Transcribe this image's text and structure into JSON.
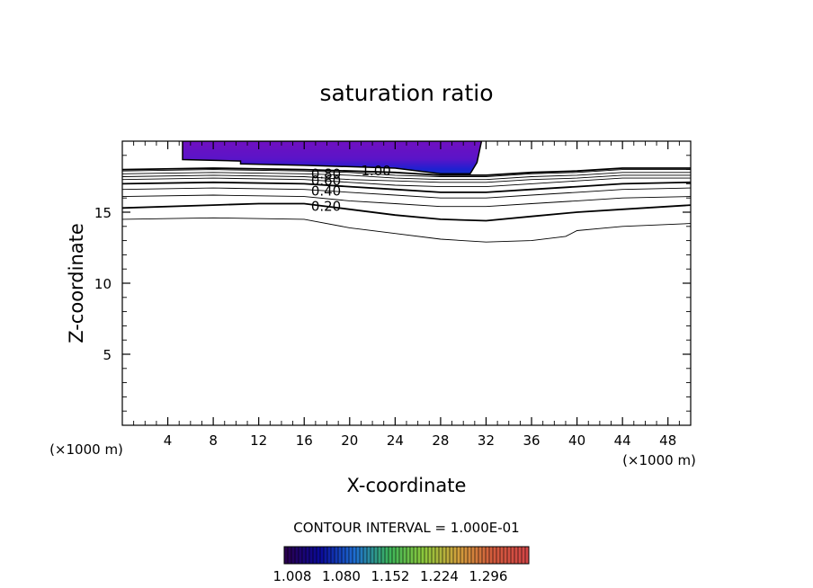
{
  "chart_data": {
    "type": "contour",
    "title": "saturation ratio",
    "xlabel": "X-coordinate",
    "ylabel": "Z-coordinate",
    "x_unit": "(×1000 m)",
    "z_unit": "(×1000 m)",
    "xlim": [
      0,
      50
    ],
    "ylim": [
      0,
      20
    ],
    "x_ticks": [
      4,
      8,
      12,
      16,
      20,
      24,
      28,
      32,
      36,
      40,
      44,
      48
    ],
    "y_ticks": [
      5,
      10,
      15
    ],
    "contour_interval_text": "CONTOUR INTERVAL = 1.000E-01",
    "colorbar_ticks": [
      "1.008",
      "1.080",
      "1.152",
      "1.224",
      "1.296"
    ],
    "colorbar_colors": [
      "#2a0050",
      "#0a0a9a",
      "#1e6ed2",
      "#3cb45a",
      "#8cc83c",
      "#d2a03c",
      "#d25a3c",
      "#d24646"
    ],
    "fill_color": "#7010c0",
    "contour_labels": [
      {
        "text": "0.20",
        "x": 16.6,
        "z": 15.4
      },
      {
        "text": "0.40",
        "x": 16.6,
        "z": 16.5
      },
      {
        "text": "0.60",
        "x": 16.6,
        "z": 17.2
      },
      {
        "text": "0.80",
        "x": 16.6,
        "z": 17.7
      },
      {
        "text": "1.00",
        "x": 21.0,
        "z": 17.9
      }
    ],
    "supersaturation_region": [
      [
        5.3,
        20
      ],
      [
        5.3,
        18.7
      ],
      [
        10.4,
        18.6
      ],
      [
        10.4,
        18.4
      ],
      [
        16,
        18.3
      ],
      [
        20,
        18.2
      ],
      [
        24,
        18.1
      ],
      [
        28,
        17.7
      ],
      [
        30.6,
        17.7
      ],
      [
        31.2,
        18.5
      ],
      [
        31.6,
        20
      ]
    ],
    "contours": [
      {
        "level": "0.10",
        "points": [
          [
            0,
            14.5
          ],
          [
            8,
            14.6
          ],
          [
            16,
            14.5
          ],
          [
            20,
            13.9
          ],
          [
            24,
            13.5
          ],
          [
            28,
            13.1
          ],
          [
            32,
            12.9
          ],
          [
            36,
            13.0
          ],
          [
            39,
            13.3
          ],
          [
            40,
            13.7
          ],
          [
            44,
            14.0
          ],
          [
            50,
            14.2
          ]
        ]
      },
      {
        "level": "0.20",
        "bold": true,
        "points": [
          [
            0,
            15.3
          ],
          [
            8,
            15.5
          ],
          [
            12,
            15.6
          ],
          [
            16,
            15.6
          ],
          [
            20,
            15.2
          ],
          [
            24,
            14.8
          ],
          [
            28,
            14.5
          ],
          [
            32,
            14.4
          ],
          [
            36,
            14.7
          ],
          [
            40,
            15.0
          ],
          [
            44,
            15.2
          ],
          [
            48,
            15.4
          ],
          [
            50,
            15.5
          ]
        ]
      },
      {
        "level": "0.30",
        "points": [
          [
            0,
            16.1
          ],
          [
            8,
            16.2
          ],
          [
            16,
            16.1
          ],
          [
            20,
            15.8
          ],
          [
            24,
            15.6
          ],
          [
            28,
            15.4
          ],
          [
            32,
            15.4
          ],
          [
            36,
            15.6
          ],
          [
            40,
            15.8
          ],
          [
            44,
            16.0
          ],
          [
            50,
            16.1
          ]
        ]
      },
      {
        "level": "0.40",
        "points": [
          [
            0,
            16.6
          ],
          [
            8,
            16.7
          ],
          [
            16,
            16.6
          ],
          [
            20,
            16.4
          ],
          [
            24,
            16.2
          ],
          [
            28,
            16.0
          ],
          [
            32,
            16.0
          ],
          [
            36,
            16.2
          ],
          [
            40,
            16.4
          ],
          [
            44,
            16.6
          ],
          [
            50,
            16.7
          ]
        ]
      },
      {
        "level": "0.50",
        "bold": true,
        "points": [
          [
            0,
            17.0
          ],
          [
            8,
            17.1
          ],
          [
            16,
            17.0
          ],
          [
            20,
            16.8
          ],
          [
            24,
            16.6
          ],
          [
            28,
            16.4
          ],
          [
            32,
            16.4
          ],
          [
            36,
            16.6
          ],
          [
            40,
            16.8
          ],
          [
            44,
            17.0
          ],
          [
            50,
            17.1
          ]
        ]
      },
      {
        "level": "0.60",
        "points": [
          [
            0,
            17.3
          ],
          [
            8,
            17.4
          ],
          [
            16,
            17.3
          ],
          [
            20,
            17.1
          ],
          [
            24,
            16.9
          ],
          [
            28,
            16.8
          ],
          [
            32,
            16.8
          ],
          [
            36,
            17.0
          ],
          [
            40,
            17.2
          ],
          [
            44,
            17.4
          ],
          [
            50,
            17.4
          ]
        ]
      },
      {
        "level": "0.70",
        "points": [
          [
            0,
            17.5
          ],
          [
            8,
            17.6
          ],
          [
            16,
            17.5
          ],
          [
            20,
            17.3
          ],
          [
            24,
            17.2
          ],
          [
            28,
            17.1
          ],
          [
            32,
            17.1
          ],
          [
            36,
            17.3
          ],
          [
            40,
            17.4
          ],
          [
            44,
            17.6
          ],
          [
            50,
            17.6
          ]
        ]
      },
      {
        "level": "0.80",
        "points": [
          [
            0,
            17.7
          ],
          [
            8,
            17.8
          ],
          [
            16,
            17.7
          ],
          [
            20,
            17.6
          ],
          [
            24,
            17.4
          ],
          [
            28,
            17.3
          ],
          [
            32,
            17.3
          ],
          [
            36,
            17.5
          ],
          [
            40,
            17.6
          ],
          [
            44,
            17.8
          ],
          [
            50,
            17.8
          ]
        ]
      },
      {
        "level": "0.90",
        "points": [
          [
            0,
            17.9
          ],
          [
            8,
            18.0
          ],
          [
            16,
            17.9
          ],
          [
            20,
            17.8
          ],
          [
            24,
            17.6
          ],
          [
            28,
            17.5
          ],
          [
            32,
            17.5
          ],
          [
            36,
            17.7
          ],
          [
            40,
            17.8
          ],
          [
            44,
            18.0
          ],
          [
            50,
            18.0
          ]
        ]
      },
      {
        "level": "1.00",
        "bold": true,
        "points": [
          [
            0,
            18.0
          ],
          [
            8,
            18.1
          ],
          [
            16,
            18.0
          ],
          [
            20,
            17.9
          ],
          [
            24,
            17.8
          ],
          [
            28,
            17.6
          ],
          [
            32,
            17.6
          ],
          [
            36,
            17.8
          ],
          [
            40,
            17.9
          ],
          [
            44,
            18.1
          ],
          [
            50,
            18.1
          ]
        ]
      }
    ]
  }
}
